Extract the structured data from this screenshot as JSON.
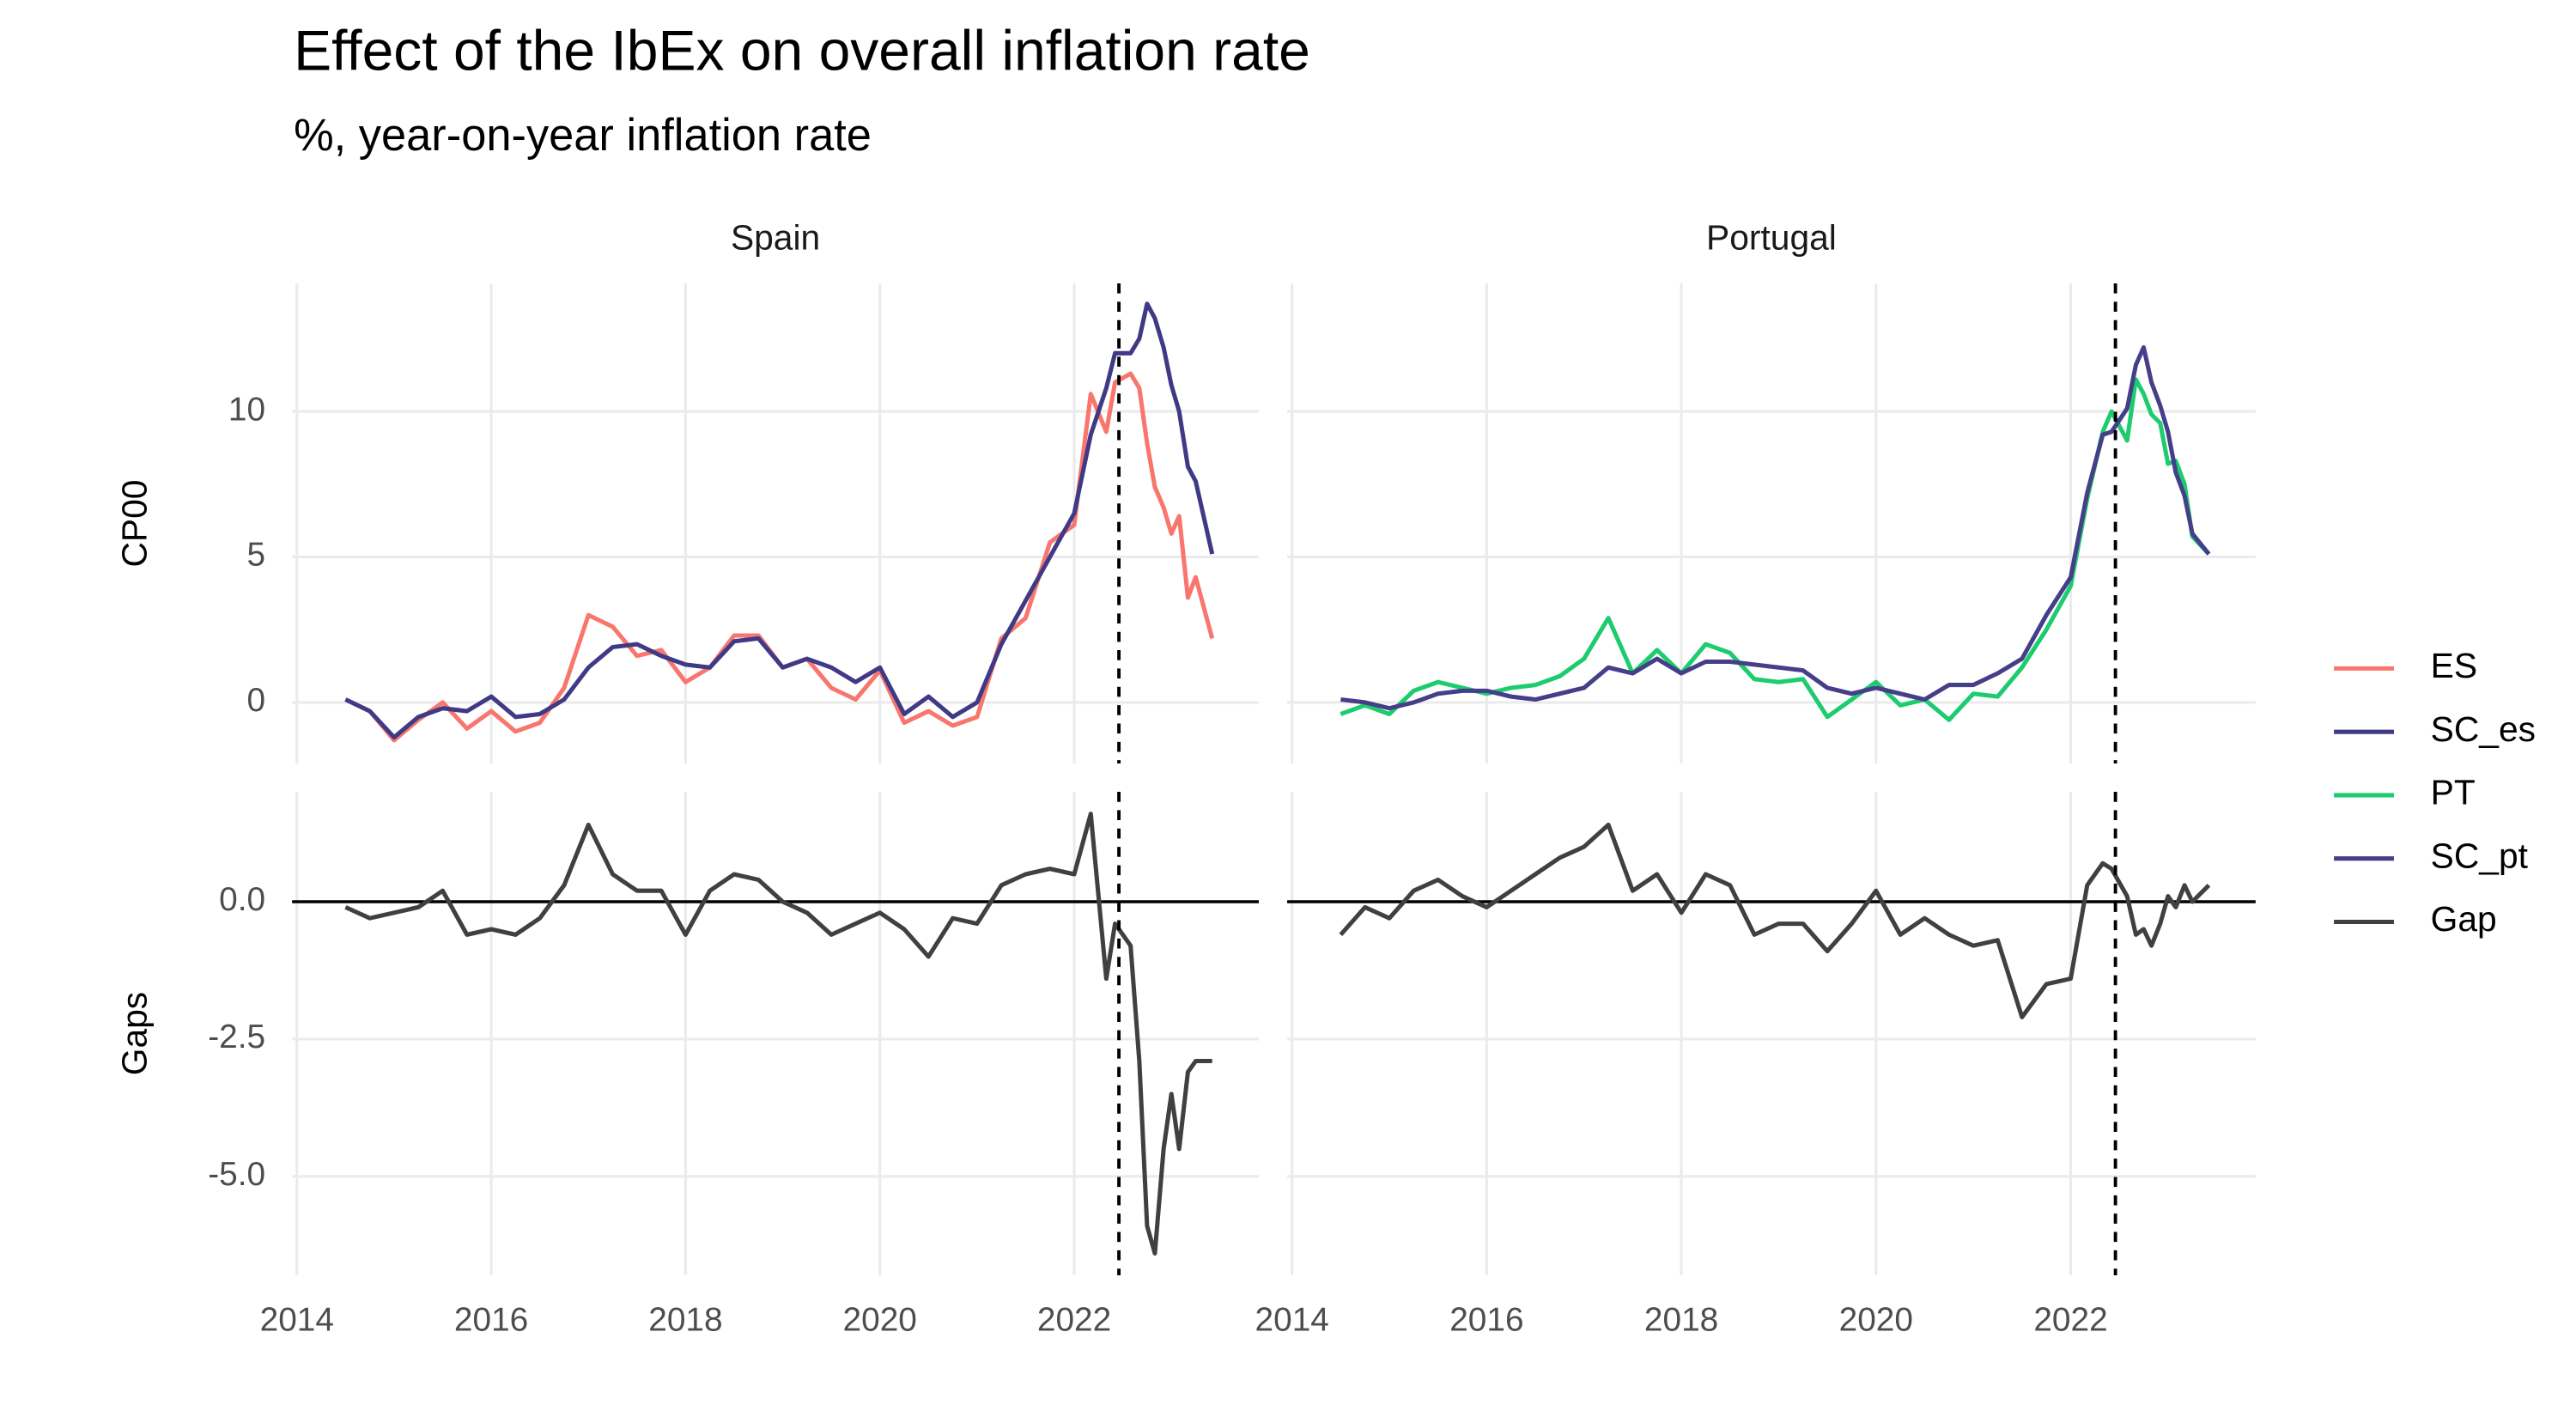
{
  "title": "Effect of the IbEx on overall inflation rate",
  "subtitle": "%, year-on-year inflation rate",
  "chart_data": [
    {
      "type": "line",
      "facet": "Spain",
      "ylabel": "CP00",
      "grid": true,
      "legend": "right",
      "vline": 2022.46,
      "xlim": [
        2013.95,
        2023.9
      ],
      "xticks": [
        2014,
        2016,
        2018,
        2020,
        2022
      ],
      "ylim": [
        -2.1,
        14.4
      ],
      "yticks": [
        0,
        5,
        10
      ],
      "x": [
        2014.5,
        2014.75,
        2015,
        2015.25,
        2015.5,
        2015.75,
        2016,
        2016.25,
        2016.5,
        2016.75,
        2017,
        2017.25,
        2017.5,
        2017.75,
        2018,
        2018.25,
        2018.5,
        2018.75,
        2019,
        2019.25,
        2019.5,
        2019.75,
        2020,
        2020.25,
        2020.5,
        2020.75,
        2021,
        2021.25,
        2021.5,
        2021.75,
        2022,
        2022.17,
        2022.33,
        2022.42,
        2022.58,
        2022.67,
        2022.75,
        2022.83,
        2022.92,
        2023,
        2023.08,
        2023.17,
        2023.25,
        2023.42
      ],
      "series": [
        {
          "name": "ES",
          "color": "#f8766d",
          "values": [
            0.1,
            -0.3,
            -1.3,
            -0.6,
            0.0,
            -0.9,
            -0.3,
            -1.0,
            -0.7,
            0.5,
            3.0,
            2.6,
            1.6,
            1.8,
            0.7,
            1.2,
            2.3,
            2.3,
            1.2,
            1.5,
            0.5,
            0.1,
            1.1,
            -0.7,
            -0.3,
            -0.8,
            -0.5,
            2.2,
            2.9,
            5.5,
            6.1,
            10.6,
            9.3,
            11.0,
            11.3,
            10.8,
            8.9,
            7.4,
            6.7,
            5.8,
            6.4,
            3.6,
            4.3,
            2.2
          ]
        },
        {
          "name": "SC_es",
          "color": "#403a86",
          "values": [
            0.1,
            -0.3,
            -1.2,
            -0.5,
            -0.2,
            -0.3,
            0.2,
            -0.5,
            -0.4,
            0.1,
            1.2,
            1.9,
            2.0,
            1.6,
            1.3,
            1.2,
            2.1,
            2.2,
            1.2,
            1.5,
            1.2,
            0.7,
            1.2,
            -0.4,
            0.2,
            -0.5,
            0.0,
            2.0,
            3.5,
            5.0,
            6.5,
            9.2,
            10.8,
            12.0,
            12.0,
            12.5,
            13.7,
            13.2,
            12.2,
            10.9,
            10.0,
            8.1,
            7.6,
            5.1
          ]
        }
      ]
    },
    {
      "type": "line",
      "facet": "Portugal",
      "grid": true,
      "vline": 2022.46,
      "xlim": [
        2013.95,
        2023.9
      ],
      "xticks": [
        2014,
        2016,
        2018,
        2020,
        2022
      ],
      "ylim": [
        -2.1,
        14.4
      ],
      "yticks": [
        0,
        5,
        10
      ],
      "x": [
        2014.5,
        2014.75,
        2015,
        2015.25,
        2015.5,
        2015.75,
        2016,
        2016.25,
        2016.5,
        2016.75,
        2017,
        2017.25,
        2017.5,
        2017.75,
        2018,
        2018.25,
        2018.5,
        2018.75,
        2019,
        2019.25,
        2019.5,
        2019.75,
        2020,
        2020.25,
        2020.5,
        2020.75,
        2021,
        2021.25,
        2021.5,
        2021.75,
        2022,
        2022.17,
        2022.33,
        2022.42,
        2022.58,
        2022.67,
        2022.75,
        2022.83,
        2022.92,
        2023,
        2023.08,
        2023.17,
        2023.25,
        2023.42
      ],
      "series": [
        {
          "name": "PT",
          "color": "#1ccc6e",
          "values": [
            -0.4,
            -0.1,
            -0.4,
            0.4,
            0.7,
            0.5,
            0.3,
            0.5,
            0.6,
            0.9,
            1.5,
            2.9,
            1.0,
            1.8,
            1.0,
            2.0,
            1.7,
            0.8,
            0.7,
            0.8,
            -0.5,
            0.1,
            0.7,
            -0.1,
            0.1,
            -0.6,
            0.3,
            0.2,
            1.2,
            2.5,
            4.0,
            7.0,
            9.3,
            10.0,
            9.0,
            11.1,
            10.6,
            9.9,
            9.6,
            8.2,
            8.3,
            7.5,
            5.7,
            5.1
          ]
        },
        {
          "name": "SC_pt",
          "color": "#453e88",
          "values": [
            0.1,
            0.0,
            -0.2,
            0.0,
            0.3,
            0.4,
            0.4,
            0.2,
            0.1,
            0.3,
            0.5,
            1.2,
            1.0,
            1.5,
            1.0,
            1.4,
            1.4,
            1.3,
            1.2,
            1.1,
            0.5,
            0.3,
            0.5,
            0.3,
            0.1,
            0.6,
            0.6,
            1.0,
            1.5,
            3.0,
            4.3,
            7.2,
            9.2,
            9.3,
            10.1,
            11.6,
            12.2,
            11.0,
            10.2,
            9.3,
            7.9,
            7.1,
            5.8,
            5.1
          ]
        }
      ]
    },
    {
      "type": "line",
      "ylabel": "Gaps",
      "grid": true,
      "vline": 2022.46,
      "hline": 0,
      "xlim": [
        2013.95,
        2023.9
      ],
      "xticks": [
        2014,
        2016,
        2018,
        2020,
        2022
      ],
      "ylim": [
        -6.8,
        2.0
      ],
      "yticks": [
        {
          "value": 0,
          "label": "0.0"
        },
        {
          "value": -2.5,
          "label": "-2.5"
        },
        {
          "value": -5,
          "label": "-5.0"
        }
      ],
      "x": [
        2014.5,
        2014.75,
        2015,
        2015.25,
        2015.5,
        2015.75,
        2016,
        2016.25,
        2016.5,
        2016.75,
        2017,
        2017.25,
        2017.5,
        2017.75,
        2018,
        2018.25,
        2018.5,
        2018.75,
        2019,
        2019.25,
        2019.5,
        2019.75,
        2020,
        2020.25,
        2020.5,
        2020.75,
        2021,
        2021.25,
        2021.5,
        2021.75,
        2022,
        2022.17,
        2022.33,
        2022.42,
        2022.58,
        2022.67,
        2022.75,
        2022.83,
        2022.92,
        2023,
        2023.08,
        2023.17,
        2023.25,
        2023.42
      ],
      "series": [
        {
          "name": "Gap",
          "color": "#404040",
          "values": [
            -0.1,
            -0.3,
            -0.2,
            -0.1,
            0.2,
            -0.6,
            -0.5,
            -0.6,
            -0.3,
            0.3,
            1.4,
            0.5,
            0.2,
            0.2,
            -0.6,
            0.2,
            0.5,
            0.4,
            0.0,
            -0.2,
            -0.6,
            -0.4,
            -0.2,
            -0.5,
            -1.0,
            -0.3,
            -0.4,
            0.3,
            0.5,
            0.6,
            0.5,
            1.6,
            -1.4,
            -0.4,
            -0.8,
            -2.9,
            -5.9,
            -6.4,
            -4.5,
            -3.5,
            -4.5,
            -3.1,
            -2.9,
            -2.9
          ]
        }
      ]
    },
    {
      "type": "line",
      "grid": true,
      "vline": 2022.46,
      "hline": 0,
      "xlim": [
        2013.95,
        2023.9
      ],
      "xticks": [
        2014,
        2016,
        2018,
        2020,
        2022
      ],
      "ylim": [
        -6.8,
        2.0
      ],
      "yticks": [
        {
          "value": 0,
          "label": "0.0"
        },
        {
          "value": -2.5,
          "label": "-2.5"
        },
        {
          "value": -5,
          "label": "-5.0"
        }
      ],
      "x": [
        2014.5,
        2014.75,
        2015,
        2015.25,
        2015.5,
        2015.75,
        2016,
        2016.25,
        2016.5,
        2016.75,
        2017,
        2017.25,
        2017.5,
        2017.75,
        2018,
        2018.25,
        2018.5,
        2018.75,
        2019,
        2019.25,
        2019.5,
        2019.75,
        2020,
        2020.25,
        2020.5,
        2020.75,
        2021,
        2021.25,
        2021.5,
        2021.75,
        2022,
        2022.17,
        2022.33,
        2022.42,
        2022.58,
        2022.67,
        2022.75,
        2022.83,
        2022.92,
        2023,
        2023.08,
        2023.17,
        2023.25,
        2023.42
      ],
      "series": [
        {
          "name": "Gap",
          "color": "#404040",
          "values": [
            -0.6,
            -0.1,
            -0.3,
            0.2,
            0.4,
            0.1,
            -0.1,
            0.2,
            0.5,
            0.8,
            1.0,
            1.4,
            0.2,
            0.5,
            -0.2,
            0.5,
            0.3,
            -0.6,
            -0.4,
            -0.4,
            -0.9,
            -0.4,
            0.2,
            -0.6,
            -0.3,
            -0.6,
            -0.8,
            -0.7,
            -2.1,
            -1.5,
            -1.4,
            0.3,
            0.7,
            0.6,
            0.1,
            -0.6,
            -0.5,
            -0.8,
            -0.4,
            0.1,
            -0.1,
            0.3,
            0.0,
            0.3
          ]
        }
      ]
    }
  ]
}
